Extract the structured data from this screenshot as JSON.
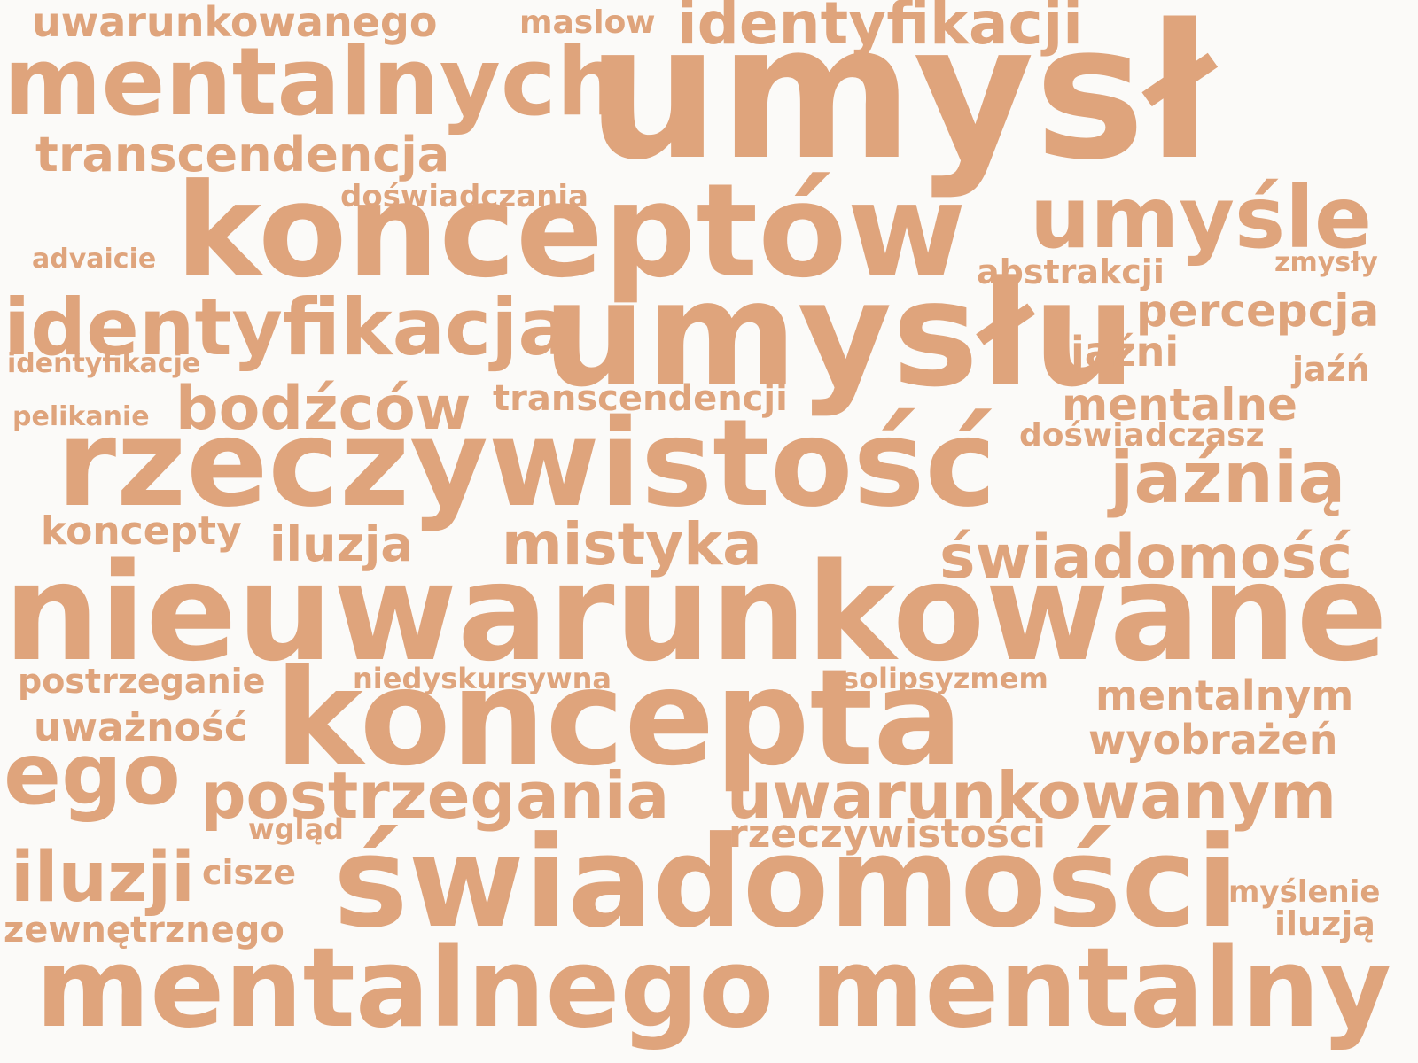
{
  "word_color": "#dfa47c",
  "background_color": "#fbfaf8",
  "words": {
    "umysl": "umysł",
    "nieuwarunkowane": "nieuwarunkowane",
    "konceptow": "konceptów",
    "umyslu": "umysłu",
    "rzeczywistosc": "rzeczywistość",
    "konceptami": "koncepta",
    "swiadomosci": "świadomości",
    "mentalnego": "mentalnego",
    "mentalny": "mentalny",
    "mentalnych": "mentalnych",
    "umysle": "umyśle",
    "identyfikacja": "identyfikacja",
    "identyfikacji": "identyfikacji",
    "ego": "ego",
    "transcendencja": "transcendencja",
    "bodzcow": "bodźców",
    "mistyka": "mistyka",
    "postrzegania": "postrzegania",
    "uwarunkowanym": "uwarunkowanym",
    "swiadomosc": "świadomość",
    "jaznia": "jaźnią",
    "iluzji": "iluzji",
    "uwarunkowanego": "uwarunkowanego",
    "percepcja": "percepcja",
    "mentalne": "mentalne",
    "mentalnym": "mentalnym",
    "wyobrazen": "wyobrażeń",
    "iluzja": "iluzja",
    "rzeczywistosci": "rzeczywistości",
    "koncepty": "koncepty",
    "transcendencji": "transcendencji",
    "doswiadczasz": "doświadczasz",
    "abstrakcji": "abstrakcji",
    "jazni": "jaźni",
    "zewnetrznego": "zewnętrznego",
    "postrzeganie": "postrzeganie",
    "uwaznosc": "uważność",
    "maslow": "maslow",
    "doswiadczania": "doświadczania",
    "niedyskursywna": "niedyskursywna",
    "solipsyzmem": "solipsyzmem",
    "jazn": "jaźń",
    "mysl_enie": "myślenie",
    "iluzja_instr": "iluzją",
    "cisze": "cisze",
    "identyfikacje": "identyfikacje",
    "advaicie": "advaicie",
    "pelikanie": "pelikanie",
    "zmysly": "zmysły",
    "wglad": "wgląd"
  }
}
